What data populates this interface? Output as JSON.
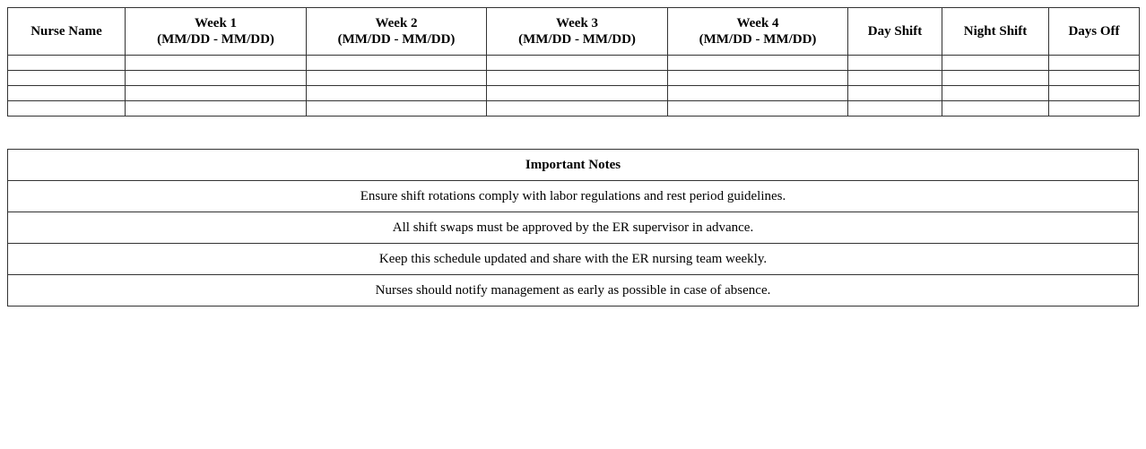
{
  "schedule": {
    "headers": [
      {
        "line1": "Nurse Name",
        "line2": ""
      },
      {
        "line1": "Week 1",
        "line2": "(MM/DD - MM/DD)"
      },
      {
        "line1": "Week 2",
        "line2": "(MM/DD - MM/DD)"
      },
      {
        "line1": "Week 3",
        "line2": "(MM/DD - MM/DD)"
      },
      {
        "line1": "Week 4",
        "line2": "(MM/DD - MM/DD)"
      },
      {
        "line1": "Day Shift",
        "line2": ""
      },
      {
        "line1": "Night Shift",
        "line2": ""
      },
      {
        "line1": "Days Off",
        "line2": ""
      }
    ],
    "rows": [
      [
        "",
        "",
        "",
        "",
        "",
        "",
        "",
        ""
      ],
      [
        "",
        "",
        "",
        "",
        "",
        "",
        "",
        ""
      ],
      [
        "",
        "",
        "",
        "",
        "",
        "",
        "",
        ""
      ],
      [
        "",
        "",
        "",
        "",
        "",
        "",
        "",
        ""
      ]
    ]
  },
  "notes": {
    "title": "Important Notes",
    "items": [
      "Ensure shift rotations comply with labor regulations and rest period guidelines.",
      "All shift swaps must be approved by the ER supervisor in advance.",
      "Keep this schedule updated and share with the ER nursing team weekly.",
      "Nurses should notify management as early as possible in case of absence."
    ]
  }
}
